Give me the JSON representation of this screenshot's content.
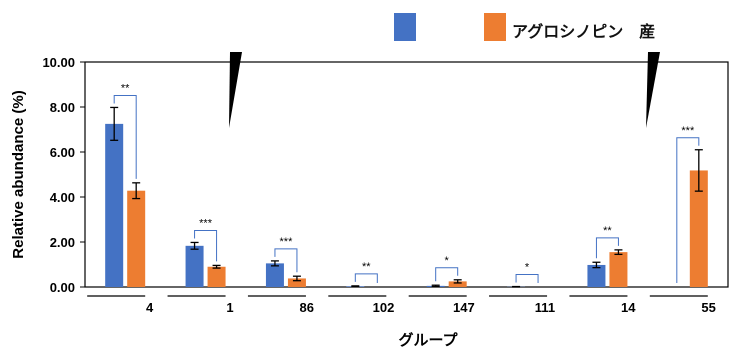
{
  "chart_data": {
    "type": "bar",
    "ylabel": "Relative abundance (%)",
    "xlabel": "グループ",
    "ylim": [
      0,
      10
    ],
    "yticks": [
      "0.00",
      "2.00",
      "4.00",
      "6.00",
      "8.00",
      "10.00"
    ],
    "grid": false,
    "legend_position": "top-right",
    "categories": [
      "4",
      "1",
      "86",
      "102",
      "147",
      "111",
      "14",
      "55"
    ],
    "series": [
      {
        "name": "",
        "color": "#4472C4",
        "values": [
          7.25,
          1.83,
          1.05,
          0.03,
          0.05,
          0.01,
          0.98,
          0.0
        ],
        "errors": [
          0.73,
          0.15,
          0.11,
          0.02,
          0.03,
          0.01,
          0.12,
          0.0
        ]
      },
      {
        "name": "アグロシノピン　産",
        "color": "#ED7D31",
        "values": [
          4.28,
          0.9,
          0.38,
          0.0,
          0.25,
          0.0,
          1.55,
          5.18
        ],
        "errors": [
          0.35,
          0.06,
          0.1,
          0.0,
          0.07,
          0.0,
          0.1,
          0.92
        ]
      }
    ],
    "significance": [
      "**",
      "***",
      "***",
      "**",
      "*",
      "*",
      "**",
      "***"
    ]
  }
}
